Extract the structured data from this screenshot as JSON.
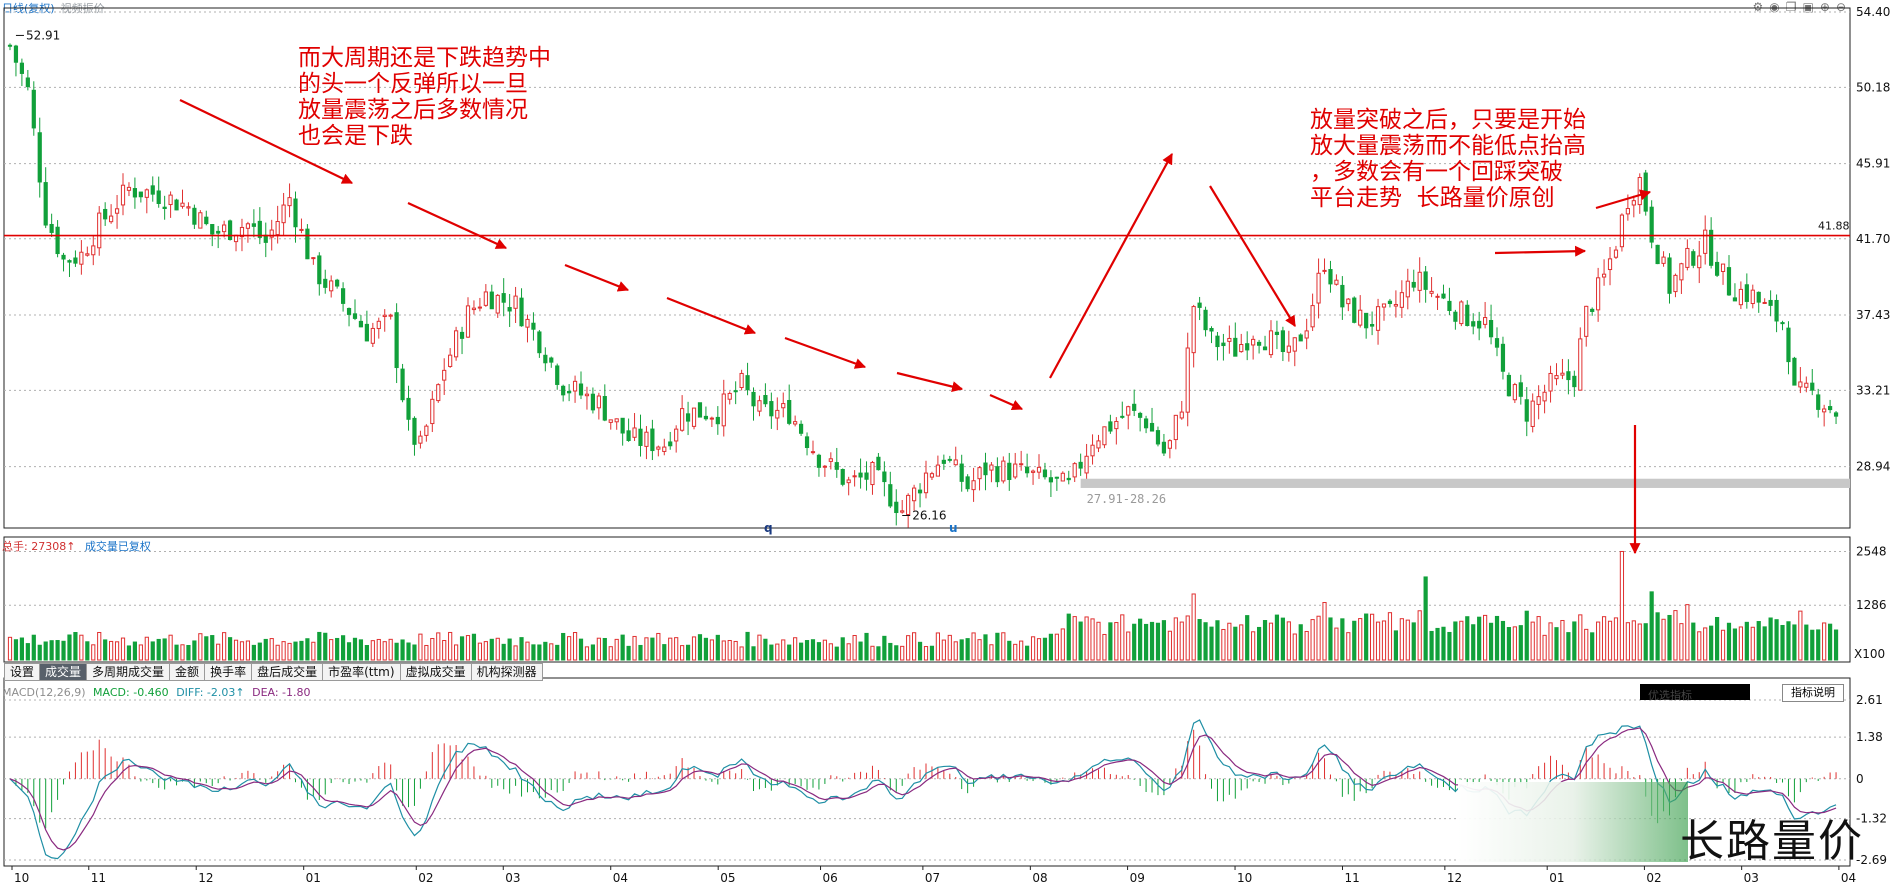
{
  "header": {
    "title": "日线(复权)",
    "subtitle": "视频振价"
  },
  "chart_data": {
    "type": "candlestick",
    "price_axis_ticks": [
      "54.40",
      "50.18",
      "45.91",
      "41.70",
      "37.43",
      "33.21",
      "28.94"
    ],
    "ylim": [
      25.5,
      54.4
    ],
    "x_month_labels": [
      "10",
      "11",
      "12",
      "01",
      "02",
      "03",
      "04",
      "05",
      "06",
      "07",
      "08",
      "09",
      "10",
      "11",
      "12",
      "01",
      "02",
      "03",
      "04"
    ],
    "annotations": {
      "high_label": "52.91",
      "low_label": "26.16",
      "resistance_level": 41.88,
      "resistance_label": "41.88",
      "support_range": [
        27.91,
        28.26
      ],
      "support_label": "27.91-28.26",
      "marker_q": "q",
      "marker_u": "u"
    },
    "price_path": [
      {
        "d": 0,
        "p": 52.5
      },
      {
        "d": 15,
        "p": 50
      },
      {
        "d": 30,
        "p": 43
      },
      {
        "d": 45,
        "p": 40.5
      },
      {
        "d": 60,
        "p": 40.8
      },
      {
        "d": 75,
        "p": 42.5
      },
      {
        "d": 100,
        "p": 44.5
      },
      {
        "d": 125,
        "p": 44.2
      },
      {
        "d": 150,
        "p": 43.5
      },
      {
        "d": 170,
        "p": 42
      },
      {
        "d": 200,
        "p": 42.5
      },
      {
        "d": 215,
        "p": 41.5
      },
      {
        "d": 235,
        "p": 44
      },
      {
        "d": 255,
        "p": 40
      },
      {
        "d": 275,
        "p": 38.5
      },
      {
        "d": 300,
        "p": 36.5
      },
      {
        "d": 320,
        "p": 37
      },
      {
        "d": 335,
        "p": 31
      },
      {
        "d": 345,
        "p": 30
      },
      {
        "d": 365,
        "p": 34.5
      },
      {
        "d": 385,
        "p": 37.5
      },
      {
        "d": 400,
        "p": 38.6
      },
      {
        "d": 425,
        "p": 38
      },
      {
        "d": 445,
        "p": 36
      },
      {
        "d": 465,
        "p": 33.5
      },
      {
        "d": 495,
        "p": 32.5
      },
      {
        "d": 520,
        "p": 30.5
      },
      {
        "d": 550,
        "p": 30.2
      },
      {
        "d": 565,
        "p": 32
      },
      {
        "d": 595,
        "p": 32
      },
      {
        "d": 615,
        "p": 33.5
      },
      {
        "d": 630,
        "p": 32
      },
      {
        "d": 655,
        "p": 32
      },
      {
        "d": 680,
        "p": 29.5
      },
      {
        "d": 705,
        "p": 28
      },
      {
        "d": 725,
        "p": 28.5
      },
      {
        "d": 750,
        "p": 26.5
      },
      {
        "d": 770,
        "p": 28.5
      },
      {
        "d": 785,
        "p": 29.5
      },
      {
        "d": 805,
        "p": 27.8
      },
      {
        "d": 820,
        "p": 28.8
      },
      {
        "d": 845,
        "p": 28.7
      },
      {
        "d": 870,
        "p": 28.2
      },
      {
        "d": 890,
        "p": 27.8
      },
      {
        "d": 910,
        "p": 30.5
      },
      {
        "d": 940,
        "p": 32
      },
      {
        "d": 955,
        "p": 31.5
      },
      {
        "d": 972,
        "p": 29.5
      },
      {
        "d": 985,
        "p": 32.5
      },
      {
        "d": 995,
        "p": 38
      },
      {
        "d": 1010,
        "p": 36
      },
      {
        "d": 1030,
        "p": 35.5
      },
      {
        "d": 1045,
        "p": 36.5
      },
      {
        "d": 1060,
        "p": 36
      },
      {
        "d": 1075,
        "p": 35
      },
      {
        "d": 1090,
        "p": 37
      },
      {
        "d": 1105,
        "p": 40.5
      },
      {
        "d": 1120,
        "p": 38
      },
      {
        "d": 1140,
        "p": 37
      },
      {
        "d": 1160,
        "p": 37.5
      },
      {
        "d": 1180,
        "p": 39.5
      },
      {
        "d": 1200,
        "p": 38.5
      },
      {
        "d": 1220,
        "p": 37.5
      },
      {
        "d": 1240,
        "p": 37
      },
      {
        "d": 1255,
        "p": 34
      },
      {
        "d": 1275,
        "p": 32
      },
      {
        "d": 1295,
        "p": 33.5
      },
      {
        "d": 1315,
        "p": 34
      },
      {
        "d": 1325,
        "p": 37.5
      },
      {
        "d": 1340,
        "p": 39.5
      },
      {
        "d": 1350,
        "p": 41.5
      },
      {
        "d": 1360,
        "p": 44
      },
      {
        "d": 1370,
        "p": 45
      },
      {
        "d": 1380,
        "p": 42
      },
      {
        "d": 1395,
        "p": 39
      },
      {
        "d": 1410,
        "p": 40.5
      },
      {
        "d": 1425,
        "p": 41.5
      },
      {
        "d": 1445,
        "p": 39
      },
      {
        "d": 1465,
        "p": 38.5
      },
      {
        "d": 1480,
        "p": 37.5
      },
      {
        "d": 1492,
        "p": 37
      },
      {
        "d": 1500,
        "p": 33
      },
      {
        "d": 1515,
        "p": 33
      },
      {
        "d": 1535,
        "p": 32
      }
    ],
    "volume_axis_ticks": [
      "2548",
      "1286"
    ],
    "volume_unit": "X100",
    "volume_peaks": [
      {
        "d": 993,
        "v": 1550
      },
      {
        "d": 1105,
        "v": 1350
      },
      {
        "d": 1192,
        "v": 1950
      },
      {
        "d": 1354,
        "v": 2548
      },
      {
        "d": 1380,
        "v": 1600
      },
      {
        "d": 1410,
        "v": 1300
      }
    ],
    "macd_axis_ticks": [
      "2.61",
      "1.38",
      "0",
      "-1.32",
      "-2.69"
    ],
    "macd_ylim": [
      -2.69,
      2.61
    ]
  },
  "volume_panel": {
    "label": "总手: 27308",
    "arrow": "↑",
    "status": "成交量已复权"
  },
  "tabs": [
    "设置",
    "成交量",
    "多周期成交量",
    "金额",
    "换手率",
    "盘后成交量",
    "市盈率(ttm)",
    "虚拟成交量",
    "机构探测器"
  ],
  "macd_panel": {
    "name": "MACD(12,26,9)",
    "macd": "MACD: -0.460",
    "diff": "DIFF: -2.03",
    "dea": "DEA: -1.80",
    "arrow": "↑",
    "right_button": "指标说明",
    "dark_button": "优选指标"
  },
  "text_annotations": {
    "left": "而大周期还是下跌趋势中\n的头一个反弹所以一旦\n放量震荡之后多数情况\n也会是下跌",
    "right": "放量突破之后，只要是开始\n放大量震荡而不能低点抬高\n，多数会有一个回踩突破\n平台走势  长路量价原创"
  },
  "watermark": "长路量价",
  "colors": {
    "up": "#e03030",
    "down": "#11a03a",
    "resistance": "#e00000",
    "support": "#c8c8c8",
    "diff_line": "#1f8fa5",
    "dea_line": "#8a2a80",
    "annotation": "#e00000"
  }
}
